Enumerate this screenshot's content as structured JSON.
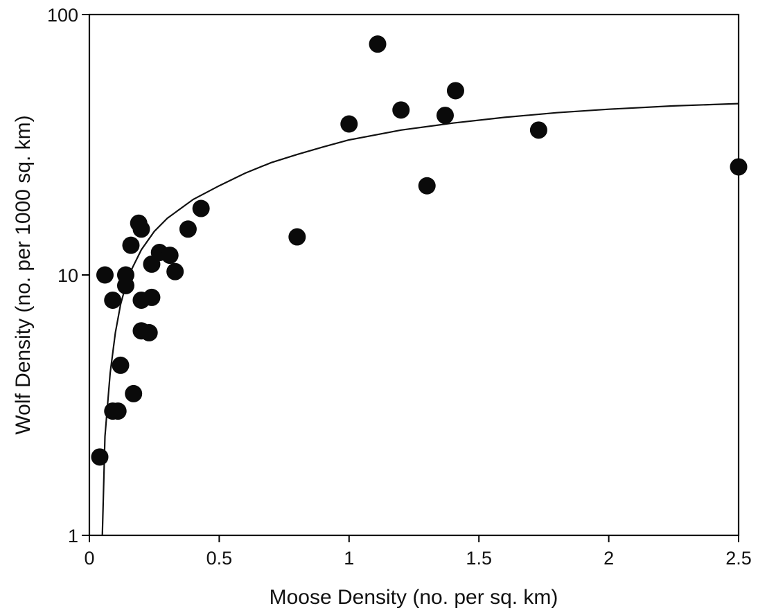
{
  "chart_data": {
    "type": "scatter",
    "title": "",
    "xlabel": "Moose Density (no. per sq. km)",
    "ylabel": "Wolf Density (no. per 1000 sq. km)",
    "xlim": [
      0,
      2.5
    ],
    "ylim": [
      1,
      100
    ],
    "yscale": "log",
    "grid": false,
    "legend": "none",
    "x_ticks": [
      0,
      0.5,
      1,
      1.5,
      2,
      2.5
    ],
    "x_tick_labels": [
      "0",
      "0.5",
      "1",
      "1.5",
      "2",
      "2.5"
    ],
    "y_ticks": [
      1,
      10,
      100
    ],
    "y_tick_labels": [
      "1",
      "10",
      "100"
    ],
    "points": [
      {
        "x": 0.04,
        "y": 2.0
      },
      {
        "x": 0.06,
        "y": 10.0
      },
      {
        "x": 0.09,
        "y": 8.0
      },
      {
        "x": 0.09,
        "y": 3.0
      },
      {
        "x": 0.12,
        "y": 4.5
      },
      {
        "x": 0.11,
        "y": 3.0
      },
      {
        "x": 0.14,
        "y": 9.1
      },
      {
        "x": 0.14,
        "y": 10.0
      },
      {
        "x": 0.16,
        "y": 13.0
      },
      {
        "x": 0.17,
        "y": 3.5
      },
      {
        "x": 0.19,
        "y": 15.8
      },
      {
        "x": 0.2,
        "y": 15.0
      },
      {
        "x": 0.2,
        "y": 8.0
      },
      {
        "x": 0.2,
        "y": 6.1
      },
      {
        "x": 0.23,
        "y": 6.0
      },
      {
        "x": 0.24,
        "y": 8.2
      },
      {
        "x": 0.24,
        "y": 11.0
      },
      {
        "x": 0.27,
        "y": 12.2
      },
      {
        "x": 0.31,
        "y": 11.9
      },
      {
        "x": 0.33,
        "y": 10.3
      },
      {
        "x": 0.38,
        "y": 15.0
      },
      {
        "x": 0.43,
        "y": 18.0
      },
      {
        "x": 0.8,
        "y": 14.0
      },
      {
        "x": 1.0,
        "y": 38.0
      },
      {
        "x": 1.11,
        "y": 77.0
      },
      {
        "x": 1.2,
        "y": 43.0
      },
      {
        "x": 1.3,
        "y": 22.0
      },
      {
        "x": 1.37,
        "y": 41.0
      },
      {
        "x": 1.41,
        "y": 51.0
      },
      {
        "x": 1.73,
        "y": 36.0
      },
      {
        "x": 2.5,
        "y": 26.0
      }
    ],
    "fit_curve": [
      {
        "x": 0.05,
        "y": 1.0
      },
      {
        "x": 0.06,
        "y": 2.4
      },
      {
        "x": 0.08,
        "y": 4.2
      },
      {
        "x": 0.1,
        "y": 6.0
      },
      {
        "x": 0.12,
        "y": 7.7
      },
      {
        "x": 0.15,
        "y": 9.9
      },
      {
        "x": 0.2,
        "y": 12.5
      },
      {
        "x": 0.25,
        "y": 14.7
      },
      {
        "x": 0.3,
        "y": 16.5
      },
      {
        "x": 0.4,
        "y": 19.5
      },
      {
        "x": 0.5,
        "y": 22.0
      },
      {
        "x": 0.6,
        "y": 24.6
      },
      {
        "x": 0.7,
        "y": 27.0
      },
      {
        "x": 0.8,
        "y": 29.0
      },
      {
        "x": 0.9,
        "y": 31.0
      },
      {
        "x": 1.0,
        "y": 33.0
      },
      {
        "x": 1.2,
        "y": 36.0
      },
      {
        "x": 1.4,
        "y": 38.3
      },
      {
        "x": 1.6,
        "y": 40.3
      },
      {
        "x": 1.8,
        "y": 42.0
      },
      {
        "x": 2.0,
        "y": 43.3
      },
      {
        "x": 2.25,
        "y": 44.6
      },
      {
        "x": 2.5,
        "y": 45.5
      }
    ]
  }
}
